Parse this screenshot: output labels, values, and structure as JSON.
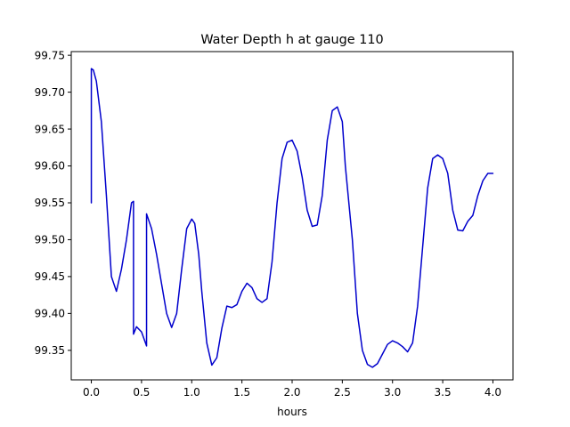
{
  "chart_data": {
    "type": "line",
    "title": "Water Depth h at gauge 110",
    "xlabel": "hours",
    "ylabel": "",
    "xlim": [
      -0.2,
      4.2
    ],
    "ylim": [
      99.31,
      99.755
    ],
    "xticks": [
      0.0,
      0.5,
      1.0,
      1.5,
      2.0,
      2.5,
      3.0,
      3.5,
      4.0
    ],
    "xtick_labels": [
      "0.0",
      "0.5",
      "1.0",
      "1.5",
      "2.0",
      "2.5",
      "3.0",
      "3.5",
      "4.0"
    ],
    "yticks": [
      99.35,
      99.4,
      99.45,
      99.5,
      99.55,
      99.6,
      99.65,
      99.7,
      99.75
    ],
    "ytick_labels": [
      "99.35",
      "99.40",
      "99.45",
      "99.50",
      "99.55",
      "99.60",
      "99.65",
      "99.70",
      "99.75"
    ],
    "grid": false,
    "legend": "none",
    "series": [
      {
        "color": "#0000cc",
        "x": [
          0.0,
          0.0,
          0.02,
          0.05,
          0.1,
          0.15,
          0.2,
          0.25,
          0.3,
          0.35,
          0.4,
          0.42,
          0.42,
          0.45,
          0.5,
          0.55,
          0.55,
          0.6,
          0.65,
          0.7,
          0.75,
          0.8,
          0.85,
          0.9,
          0.95,
          1.0,
          1.03,
          1.07,
          1.1,
          1.15,
          1.2,
          1.25,
          1.3,
          1.35,
          1.4,
          1.45,
          1.5,
          1.55,
          1.6,
          1.65,
          1.7,
          1.75,
          1.8,
          1.85,
          1.9,
          1.95,
          2.0,
          2.05,
          2.1,
          2.15,
          2.2,
          2.25,
          2.3,
          2.35,
          2.4,
          2.45,
          2.5,
          2.53,
          2.6,
          2.65,
          2.7,
          2.75,
          2.8,
          2.85,
          2.9,
          2.95,
          3.0,
          3.05,
          3.1,
          3.15,
          3.2,
          3.25,
          3.3,
          3.35,
          3.4,
          3.45,
          3.5,
          3.55,
          3.6,
          3.65,
          3.7,
          3.75,
          3.8,
          3.85,
          3.9,
          3.95,
          4.0
        ],
        "y": [
          99.55,
          99.732,
          99.73,
          99.715,
          99.66,
          99.56,
          99.45,
          99.43,
          99.46,
          99.5,
          99.55,
          99.552,
          99.372,
          99.382,
          99.375,
          99.356,
          99.535,
          99.515,
          99.48,
          99.44,
          99.4,
          99.381,
          99.4,
          99.46,
          99.515,
          99.528,
          99.522,
          99.48,
          99.43,
          99.36,
          99.33,
          99.34,
          99.38,
          99.41,
          99.408,
          99.412,
          99.43,
          99.441,
          99.435,
          99.42,
          99.415,
          99.42,
          99.47,
          99.55,
          99.61,
          99.632,
          99.635,
          99.62,
          99.585,
          99.54,
          99.518,
          99.52,
          99.56,
          99.635,
          99.675,
          99.68,
          99.66,
          99.6,
          99.5,
          99.4,
          99.35,
          99.331,
          99.327,
          99.332,
          99.345,
          99.358,
          99.363,
          99.36,
          99.355,
          99.348,
          99.36,
          99.41,
          99.49,
          99.57,
          99.61,
          99.615,
          99.61,
          99.59,
          99.54,
          99.513,
          99.512,
          99.525,
          99.533,
          99.56,
          99.58,
          99.59,
          99.59
        ]
      }
    ]
  }
}
